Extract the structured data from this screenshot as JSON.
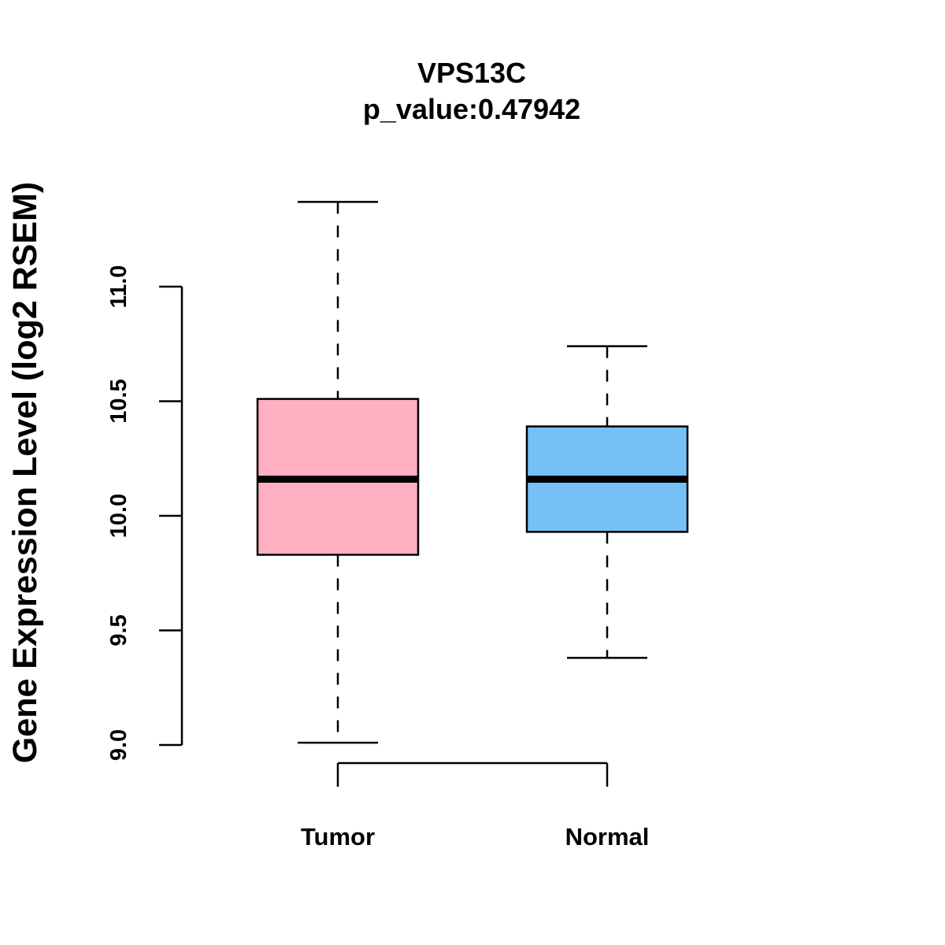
{
  "chart_data": {
    "type": "boxplot",
    "title": "VPS13C",
    "subtitle": "p_value:0.47942",
    "xlabel": "",
    "ylabel": "Gene Expression Level (log2 RSEM)",
    "ylim": [
      9.0,
      11.0
    ],
    "yticks": [
      "9.0",
      "9.5",
      "10.0",
      "10.5",
      "11.0"
    ],
    "categories": [
      "Tumor",
      "Normal"
    ],
    "series": [
      {
        "name": "Tumor",
        "color": "#FFB0C3",
        "whisker_low": 9.01,
        "q1": 9.83,
        "median": 10.16,
        "q3": 10.51,
        "whisker_high": 11.37
      },
      {
        "name": "Normal",
        "color": "#76C0F8",
        "whisker_low": 9.38,
        "q1": 9.93,
        "median": 10.16,
        "q3": 10.39,
        "whisker_high": 10.74
      }
    ],
    "comparison_bracket": [
      "Tumor",
      "Normal"
    ],
    "grid": false,
    "legend": "none"
  }
}
